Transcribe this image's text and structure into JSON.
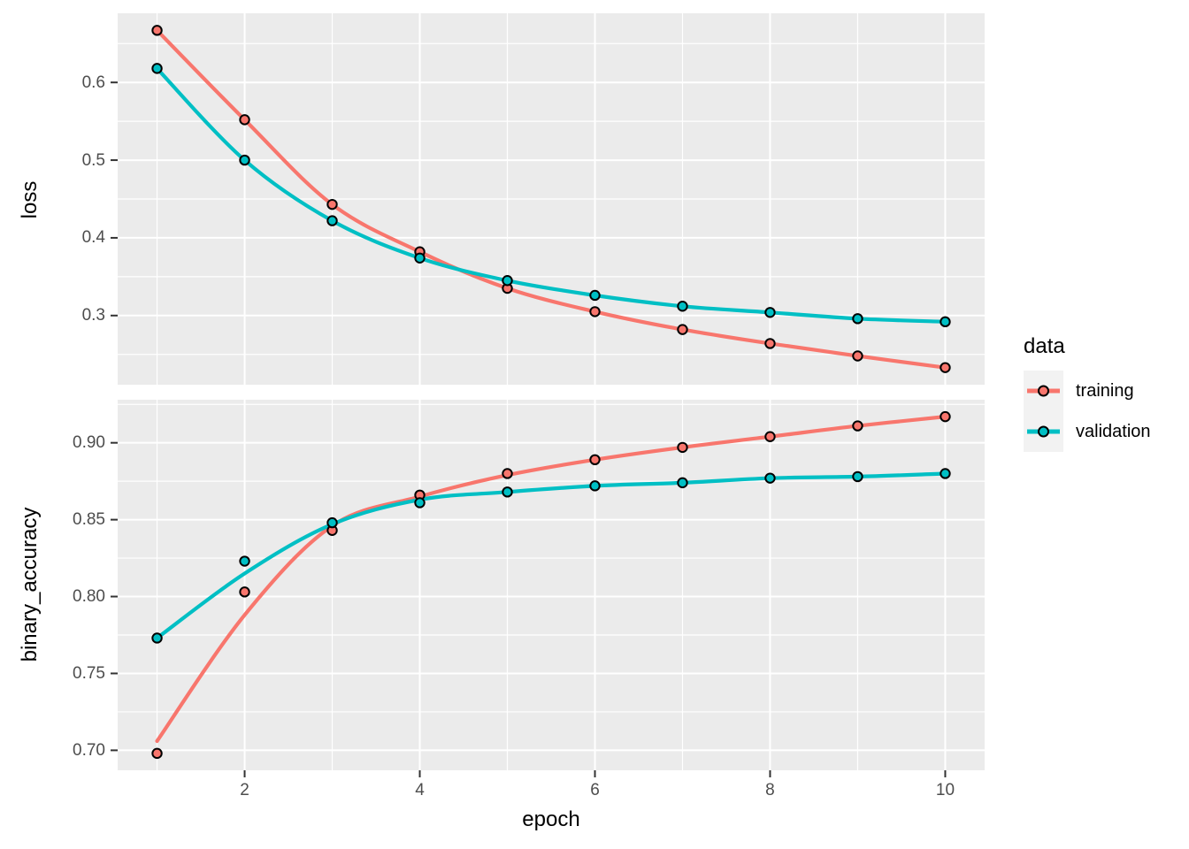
{
  "style": {
    "panel_background": "#EBEBEB",
    "grid_color": "#FFFFFF",
    "tick_mark_color": "#333333",
    "tick_text_color": "#4D4D4D",
    "axis_title_color": "#000000",
    "point_stroke": "#000000"
  },
  "x_axis": {
    "label": "epoch",
    "domain": [
      0.55,
      10.45
    ],
    "tick_values": [
      2,
      4,
      6,
      8,
      10
    ],
    "tick_labels": [
      "2",
      "4",
      "6",
      "8",
      "10"
    ],
    "minor_values": [
      1,
      3,
      5,
      7,
      9
    ]
  },
  "legend": {
    "title": "data",
    "position": "right",
    "key_background": "#F2F2F2",
    "items": [
      {
        "label": "training",
        "color": "#F8766D"
      },
      {
        "label": "validation",
        "color": "#00BFC4"
      }
    ]
  },
  "chart_data": [
    {
      "type": "line",
      "facet": "loss",
      "ylabel": "loss",
      "grid": true,
      "x": [
        1,
        2,
        3,
        4,
        5,
        6,
        7,
        8,
        9,
        10
      ],
      "ylim": [
        0.211,
        0.689
      ],
      "y_tick_values": [
        0.3,
        0.4,
        0.5,
        0.6
      ],
      "y_tick_labels": [
        "0.3",
        "0.4",
        "0.5",
        "0.6"
      ],
      "y_minor_values": [
        0.25,
        0.35,
        0.45,
        0.55,
        0.65
      ],
      "series": [
        {
          "name": "training",
          "color": "#F8766D",
          "values": [
            0.667,
            0.552,
            0.443,
            0.382,
            0.335,
            0.305,
            0.282,
            0.264,
            0.248,
            0.233
          ],
          "smooth_values": [
            0.667,
            0.552,
            0.443,
            0.382,
            0.335,
            0.305,
            0.282,
            0.264,
            0.248,
            0.233
          ]
        },
        {
          "name": "validation",
          "color": "#00BFC4",
          "values": [
            0.618,
            0.5,
            0.422,
            0.374,
            0.345,
            0.326,
            0.312,
            0.304,
            0.296,
            0.292
          ],
          "smooth_values": [
            0.618,
            0.5,
            0.422,
            0.374,
            0.345,
            0.326,
            0.312,
            0.304,
            0.296,
            0.292
          ]
        }
      ]
    },
    {
      "type": "line",
      "facet": "binary_accuracy",
      "ylabel": "binary_accuracy",
      "grid": true,
      "x": [
        1,
        2,
        3,
        4,
        5,
        6,
        7,
        8,
        9,
        10
      ],
      "ylim": [
        0.687,
        0.928
      ],
      "y_tick_values": [
        0.7,
        0.75,
        0.8,
        0.85,
        0.9
      ],
      "y_tick_labels": [
        "0.70",
        "0.75",
        "0.80",
        "0.85",
        "0.90"
      ],
      "y_minor_values": [
        0.725,
        0.775,
        0.825,
        0.875,
        0.925
      ],
      "series": [
        {
          "name": "training",
          "color": "#F8766D",
          "values": [
            0.698,
            0.803,
            0.843,
            0.866,
            0.88,
            0.889,
            0.897,
            0.904,
            0.911,
            0.917
          ],
          "smooth_values": [
            0.706,
            0.788,
            0.846,
            0.865,
            0.879,
            0.889,
            0.897,
            0.904,
            0.911,
            0.917
          ]
        },
        {
          "name": "validation",
          "color": "#00BFC4",
          "values": [
            0.773,
            0.823,
            0.848,
            0.861,
            0.868,
            0.872,
            0.874,
            0.877,
            0.878,
            0.88
          ],
          "smooth_values": [
            0.773,
            0.815,
            0.847,
            0.863,
            0.868,
            0.872,
            0.874,
            0.877,
            0.878,
            0.88
          ]
        }
      ]
    }
  ]
}
